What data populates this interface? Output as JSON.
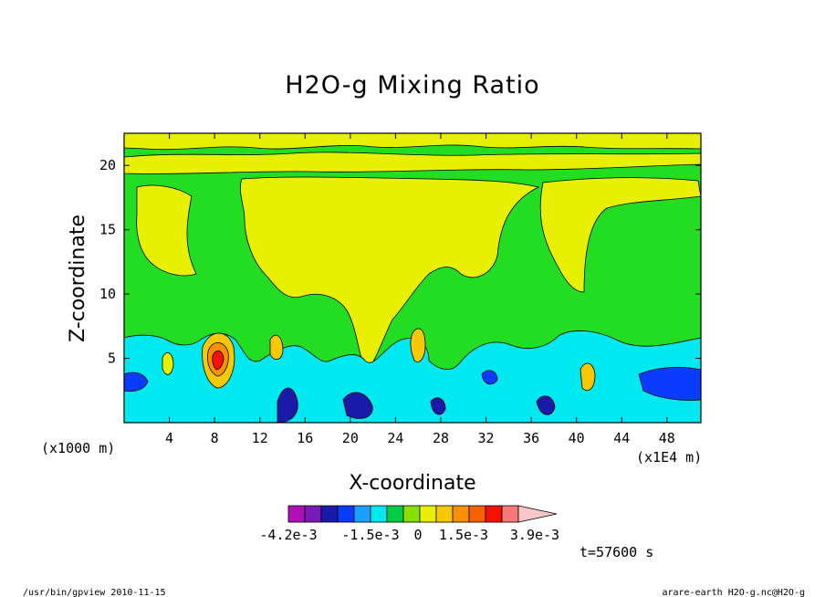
{
  "chart_data": {
    "type": "heatmap",
    "title": "H2O-g Mixing Ratio",
    "xlabel": "X-coordinate",
    "ylabel": "Z-coordinate",
    "x_unit_left": "(x1000 m)",
    "x_unit_right": "(x1E4 m)",
    "x_ticks": [
      "4",
      "8",
      "12",
      "16",
      "20",
      "24",
      "28",
      "32",
      "36",
      "40",
      "44",
      "48"
    ],
    "y_ticks": [
      "5",
      "10",
      "15",
      "20"
    ],
    "xlim": [
      0,
      51
    ],
    "ylim": [
      0,
      22.5
    ],
    "colorbar": {
      "labels": [
        "-4.2e-3",
        "-1.5e-3",
        "0",
        "1.5e-3",
        "3.9e-3"
      ],
      "colors": [
        "#b010b8",
        "#7a1ab8",
        "#1a1aa8",
        "#0a3cff",
        "#1aa0ff",
        "#00e8f0",
        "#00cc44",
        "#88e000",
        "#e8f000",
        "#f8c800",
        "#f89000",
        "#f86000",
        "#f81000",
        "#f87878",
        "#f8c8c8"
      ]
    },
    "background_level": "#22dd22",
    "time_label": "t=57600 s",
    "footer_left": "/usr/bin/gpview  2010-11-15",
    "footer_right": "arare-earth_H2O-g.nc@H2O-g"
  }
}
